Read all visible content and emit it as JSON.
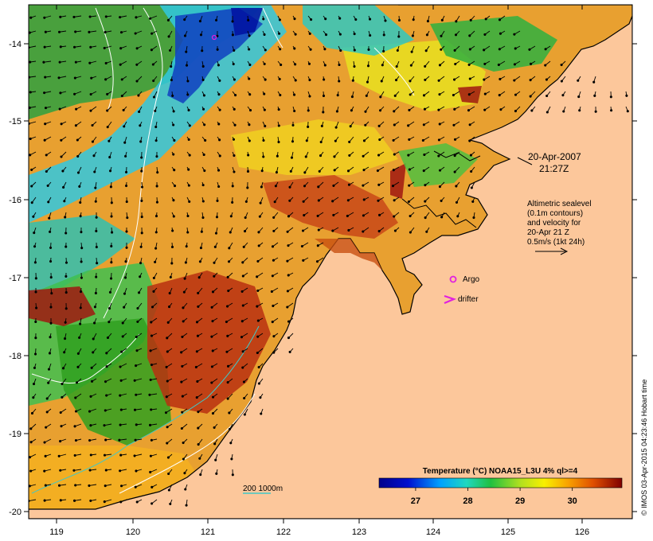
{
  "map": {
    "date": "20-Apr-2007",
    "time": "21:27Z",
    "info_lines": [
      "Altimetric sealevel",
      "(0.1m contours)",
      "and velocity for",
      "20-Apr 21 Z",
      "0.5m/s (1kt 24h)"
    ],
    "argo_label": "Argo",
    "drifter_label": "drifter",
    "depth_label": "200  1000m",
    "credit": "© IMOS 03-Apr-2015 04:23:46 Hobart time",
    "x_ticks": [
      "119",
      "120",
      "121",
      "122",
      "123",
      "124",
      "125",
      "126"
    ],
    "y_ticks": [
      "-14",
      "-15",
      "-16",
      "-17",
      "-18",
      "-19",
      "-20"
    ]
  },
  "colorbar": {
    "title": "Temperature (°C) NOAA15_L3U 4% ql>=4",
    "ticks": [
      "27",
      "28",
      "29",
      "30"
    ],
    "min_c": 26.3,
    "max_c": 30.95
  },
  "colors": {
    "land": "#fcc79b",
    "coast": "#000000",
    "contour": "#ffffff",
    "argo": "#e020e0",
    "drifter": "#e020e0",
    "depth_200": "#40c8c8",
    "depth_1000": "#ffffff"
  }
}
